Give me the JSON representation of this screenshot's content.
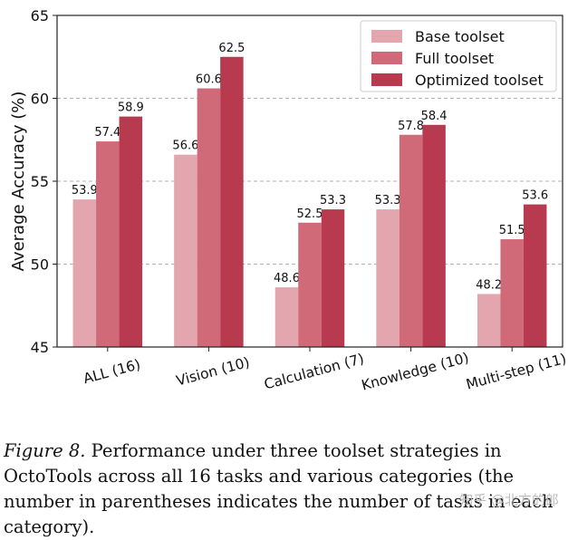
{
  "chart_data": {
    "type": "bar",
    "ylabel": "Average Accuracy (%)",
    "ylim": [
      45,
      65
    ],
    "yticks": [
      45,
      50,
      55,
      60,
      65
    ],
    "grid": true,
    "legend_position": "top-right",
    "categories": [
      "ALL (16)",
      "Vision (10)",
      "Calculation (7)",
      "Knowledge (10)",
      "Multi-step (11)"
    ],
    "series": [
      {
        "name": "Base toolset",
        "color": "#e3a6ae",
        "values": [
          53.9,
          56.6,
          48.6,
          53.3,
          48.2
        ]
      },
      {
        "name": "Full toolset",
        "color": "#d06a79",
        "values": [
          57.4,
          60.6,
          52.5,
          57.8,
          51.5
        ]
      },
      {
        "name": "Optimized toolset",
        "color": "#b83a4f",
        "values": [
          58.9,
          62.5,
          53.3,
          58.4,
          53.6
        ]
      }
    ]
  },
  "caption": {
    "label": "Figure 8.",
    "text": " Performance under three toolset strategies in OctoTools across all 16 tasks and various categories (the number in parentheses indicates the number of tasks in each category)."
  },
  "watermark": "知乎 @北方的郎"
}
